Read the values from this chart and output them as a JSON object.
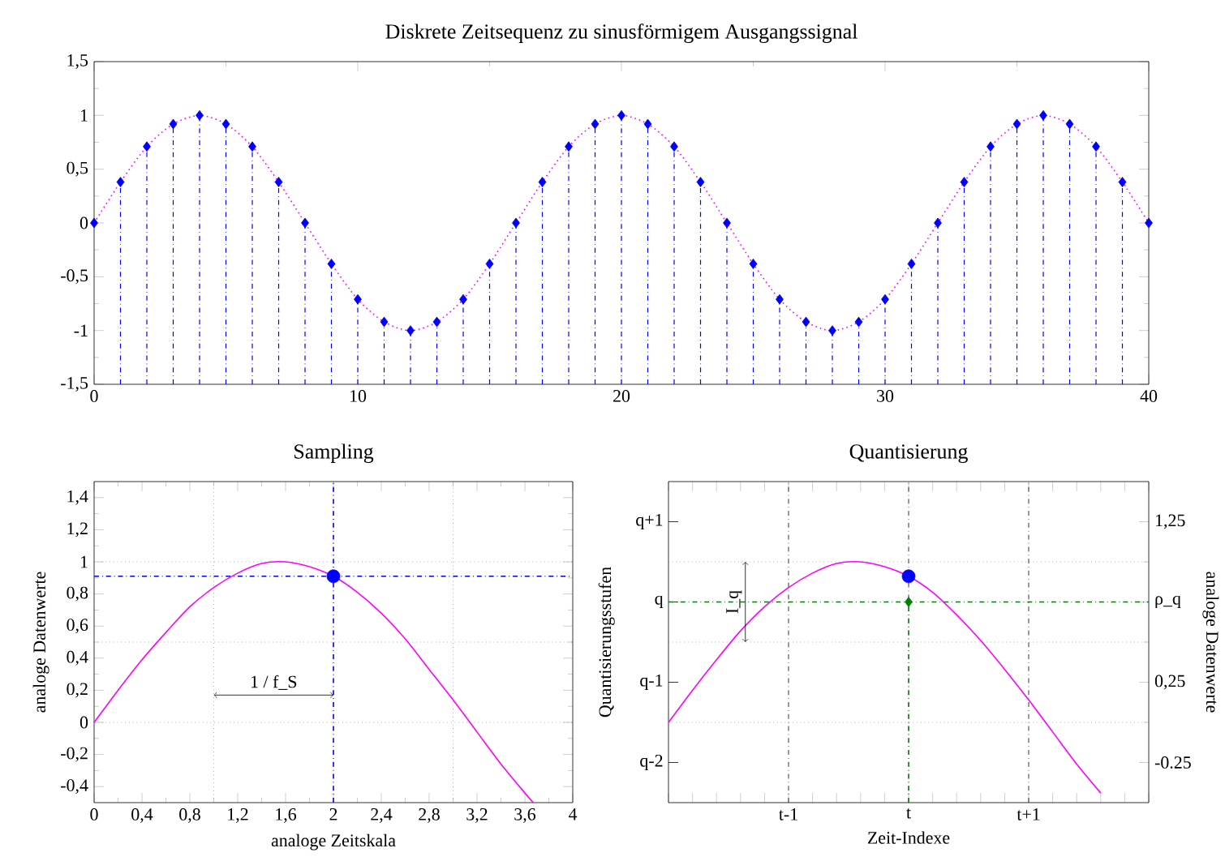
{
  "chart_data": [
    {
      "type": "scatter",
      "title": "Diskrete Zeitsequenz zu sinusförmigem Ausgangssignal",
      "x": [
        0,
        1,
        2,
        3,
        4,
        5,
        6,
        7,
        8,
        9,
        10,
        11,
        12,
        13,
        14,
        15,
        16,
        17,
        18,
        19,
        20,
        21,
        22,
        23,
        24,
        25,
        26,
        27,
        28,
        29,
        30,
        31,
        32,
        33,
        34,
        35,
        36,
        37,
        38,
        39,
        40
      ],
      "xlim": [
        0,
        40
      ],
      "xticks": [
        0,
        10,
        20,
        30,
        40
      ],
      "ylim": [
        -1.5,
        1.5
      ],
      "yticks": [
        {
          "value": -1.5,
          "label": "-1,5"
        },
        -1,
        {
          "value": -0.5,
          "label": "-0,5"
        },
        0,
        {
          "value": 0.5,
          "label": "0,5"
        },
        1,
        {
          "value": 1.5,
          "label": "1,5"
        }
      ],
      "series": [
        {
          "color": "#0000ff",
          "marker": "diamond",
          "line_style": "dashdot",
          "values": [
            0,
            0.38,
            0.71,
            0.92,
            1,
            0.92,
            0.71,
            0.38,
            0,
            -0.38,
            -0.71,
            -0.92,
            -1,
            -0.92,
            -0.71,
            -0.38,
            0,
            0.38,
            0.71,
            0.92,
            1,
            0.92,
            0.71,
            0.38,
            0,
            -0.38,
            -0.71,
            -0.92,
            -1,
            -0.92,
            -0.71,
            -0.38,
            0,
            0.38,
            0.71,
            0.92,
            1,
            0.92,
            0.71,
            0.38,
            0
          ],
          "errors": [
            null,
            [
              -1.5,
              0.38
            ],
            [
              -1.5,
              0.71
            ],
            [
              -1.5,
              0.92
            ],
            [
              -1.5,
              1
            ],
            [
              -1.5,
              0.92
            ],
            [
              -1.5,
              0.71
            ],
            [
              -1.5,
              0.38
            ],
            [
              -1.5,
              0
            ],
            [
              -1.5,
              -0.38
            ],
            [
              -1.5,
              -0.71
            ],
            [
              -1.5,
              -0.92
            ],
            [
              -1.5,
              -1
            ],
            [
              -1.5,
              -0.92
            ],
            [
              -1.5,
              -0.71
            ],
            [
              -1.5,
              -0.38
            ],
            [
              -1.5,
              0
            ],
            [
              -1.5,
              0.38
            ],
            [
              -1.5,
              0.71
            ],
            [
              -1.5,
              0.92
            ],
            [
              -1.5,
              1
            ],
            [
              -1.5,
              0.92
            ],
            [
              -1.5,
              0.71
            ],
            [
              -1.5,
              0.38
            ],
            [
              -1.5,
              0
            ],
            [
              -1.5,
              -0.38
            ],
            [
              -1.5,
              -0.71
            ],
            [
              -1.5,
              -0.92
            ],
            [
              -1.5,
              -1
            ],
            [
              -1.5,
              -0.92
            ],
            [
              -1.5,
              -0.71
            ],
            [
              -1.5,
              -0.38
            ],
            [
              -1.5,
              0
            ],
            [
              -1.5,
              0.38
            ],
            [
              -1.5,
              0.71
            ],
            [
              -1.5,
              0.92
            ],
            [
              -1.5,
              1
            ],
            [
              -1.5,
              0.92
            ],
            [
              -1.5,
              0.71
            ],
            [
              -1.5,
              0.38
            ],
            null
          ]
        },
        {
          "type": "line",
          "color": "#ff00ff",
          "marker": "none",
          "line_style": "dotted",
          "values": [
            0,
            0.38,
            0.71,
            0.92,
            1,
            0.92,
            0.71,
            0.38,
            0,
            -0.38,
            -0.71,
            -0.92,
            -1,
            -0.92,
            -0.71,
            -0.38,
            0,
            0.38,
            0.71,
            0.92,
            1,
            0.92,
            0.71,
            0.38,
            0,
            -0.38,
            -0.71,
            -0.92,
            -1,
            -0.92,
            -0.71,
            -0.38,
            0,
            0.38,
            0.71,
            0.92,
            1,
            0.92,
            0.71,
            0.38,
            0
          ]
        }
      ]
    },
    {
      "type": "line",
      "title": "Sampling",
      "xlabel": "analoge Zeitskala",
      "ylabel": "analoge Datenwerte",
      "xlim": [
        0,
        4
      ],
      "xticks": [
        0,
        {
          "value": 0.4,
          "label": "0,4"
        },
        {
          "value": 0.8,
          "label": "0,8"
        },
        {
          "value": 1.2,
          "label": "1,2"
        },
        {
          "value": 1.6,
          "label": "1,6"
        },
        2,
        {
          "value": 2.4,
          "label": "2,4"
        },
        {
          "value": 2.8,
          "label": "2,8"
        },
        {
          "value": 3.2,
          "label": "3,2"
        },
        {
          "value": 3.6,
          "label": "3,6"
        },
        4
      ],
      "ylim": [
        -0.5,
        1.5
      ],
      "yticks": [
        {
          "value": -0.4,
          "label": "-0,4"
        },
        {
          "value": -0.2,
          "label": "-0,2"
        },
        0,
        {
          "value": 0.2,
          "label": "0,2"
        },
        {
          "value": 0.4,
          "label": "0,4"
        },
        {
          "value": 0.6,
          "label": "0,6"
        },
        {
          "value": 0.8,
          "label": "0,8"
        },
        1,
        {
          "value": 1.2,
          "label": "1,2"
        },
        {
          "value": 1.4,
          "label": "1,4"
        }
      ],
      "series": [
        {
          "color": "#ff00ff",
          "marker": "none",
          "line_style": "solid",
          "x": [
            0,
            0.2,
            0.4,
            0.6,
            0.8,
            1.0,
            1.2,
            1.4,
            1.6,
            1.8,
            2.0,
            2.2,
            2.4,
            2.6,
            2.8,
            3.0,
            3.2,
            3.4,
            3.6,
            3.67
          ],
          "values": [
            0,
            0.2,
            0.39,
            0.56,
            0.72,
            0.84,
            0.93,
            0.99,
            1.0,
            0.97,
            0.91,
            0.81,
            0.68,
            0.52,
            0.33,
            0.14,
            -0.06,
            -0.26,
            -0.44,
            -0.5
          ]
        },
        {
          "type": "scatter",
          "color": "#0000ff",
          "marker": "circle",
          "x": [
            2
          ],
          "values": [
            0.91
          ]
        }
      ],
      "ref_lines": [
        {
          "axis": "x",
          "value": 1,
          "color": "#808080",
          "line_style": "dotted"
        },
        {
          "axis": "x",
          "value": 3,
          "color": "#808080",
          "line_style": "dotted"
        },
        {
          "axis": "y",
          "value": 0,
          "color": "#808080",
          "line_style": "dotted"
        },
        {
          "axis": "y",
          "value": 0.5,
          "color": "#808080",
          "line_style": "dotted"
        },
        {
          "axis": "y",
          "value": 1,
          "color": "#808080",
          "line_style": "dotted"
        },
        {
          "axis": "y",
          "value": 0.91,
          "color": "#0000ff",
          "line_style": "dashdot"
        },
        {
          "axis": "x",
          "value": 2,
          "color": "#0000ff",
          "line_style": "dashdot"
        }
      ],
      "annotations": [
        "1 / f_S"
      ]
    },
    {
      "type": "line",
      "title": "Quantisierung",
      "xlabel": "Zeit-Indexe",
      "ylabel": "analoge Datenwerte",
      "categories": [
        null,
        null,
        null,
        null,
        null,
        "t-1",
        null,
        null,
        null,
        null,
        "t",
        null,
        null,
        null,
        null,
        "t+1",
        null,
        null,
        null,
        null,
        null
      ],
      "ylim": [
        -0.5,
        1.5
      ],
      "yticks": [
        {
          "value": -0.25,
          "label": "-0.25"
        },
        {
          "value": 0.25,
          "label": "0,25"
        },
        {
          "value": 0.75,
          "label": "ρ_q"
        },
        {
          "value": 1.25,
          "label": "1,25"
        }
      ],
      "grid": "x",
      "series": [
        {
          "color": "#ff00ff",
          "marker": "none",
          "line_style": "solid",
          "values": [
            0.0,
            0.2,
            0.39,
            0.57,
            0.72,
            0.84,
            0.93,
            0.99,
            1.0,
            0.97,
            0.91,
            0.81,
            0.67,
            0.51,
            0.33,
            0.14,
            -0.06,
            -0.26,
            -0.44,
            null,
            null
          ]
        },
        {
          "type": "scatter",
          "color": "#0000ff",
          "marker": "circle",
          "values": [
            null,
            null,
            null,
            null,
            null,
            null,
            null,
            null,
            null,
            null,
            0.91,
            null,
            null,
            null,
            null,
            null,
            null,
            null,
            null,
            null,
            null
          ]
        },
        {
          "type": "scatter",
          "color": "#008000",
          "marker": "diamond",
          "line_style": "dashdot",
          "values": [
            null,
            null,
            null,
            null,
            null,
            null,
            null,
            null,
            null,
            null,
            0.75,
            null,
            null,
            null,
            null,
            null,
            null,
            null,
            null,
            null,
            null
          ],
          "errors": [
            null,
            null,
            null,
            null,
            null,
            null,
            null,
            null,
            null,
            null,
            [
              -0.5,
              0.75
            ],
            null,
            null,
            null,
            null,
            null,
            null,
            null,
            null,
            null,
            null
          ]
        }
      ],
      "ref_lines": [
        {
          "axis": "y",
          "value": 1,
          "color": "#808080",
          "line_style": "dotted"
        },
        {
          "axis": "y",
          "value": 0.5,
          "color": "#808080",
          "line_style": "dotted"
        },
        {
          "axis": "y",
          "value": 0,
          "color": "#808080",
          "line_style": "dotted"
        },
        {
          "axis": "y",
          "value": 0.75,
          "color": "#008000",
          "line_style": "dashdot"
        }
      ],
      "annotations": [
        "I_q",
        "Quantisierungsstufen",
        "q-2",
        "q-1",
        "q",
        "q+1"
      ]
    }
  ]
}
